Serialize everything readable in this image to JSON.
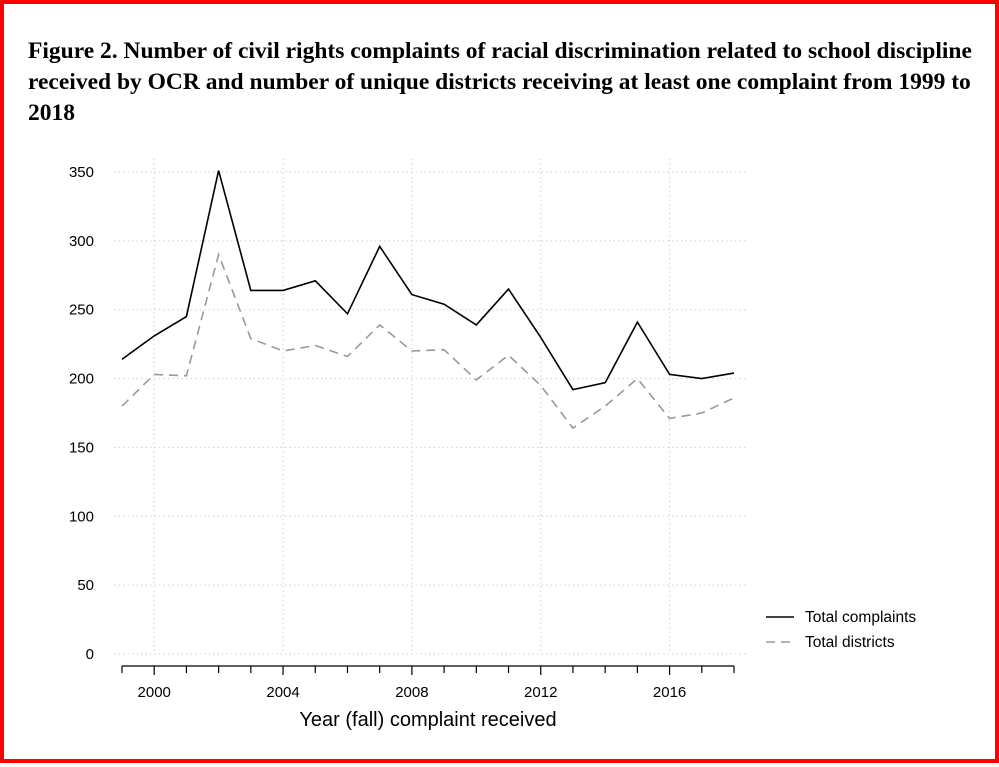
{
  "title": "Figure 2. Number of civil rights complaints of racial discrimination related to school discipline received by OCR and number of unique districts receiving at least one complaint from 1999 to 2018",
  "colors": {
    "border": "#ff0000",
    "complaints": "#000000",
    "districts": "#999999",
    "grid": "#cfcfcf"
  },
  "chart_data": {
    "type": "line",
    "title": "Figure 2. Number of civil rights complaints of racial discrimination related to school discipline received by OCR and number of unique districts receiving at least one complaint from 1999 to 2018",
    "xlabel": "Year (fall) complaint received",
    "ylabel": "",
    "x": [
      1999,
      2000,
      2001,
      2002,
      2003,
      2004,
      2005,
      2006,
      2007,
      2008,
      2009,
      2010,
      2011,
      2012,
      2013,
      2014,
      2015,
      2016,
      2017,
      2018
    ],
    "xlim": [
      1999,
      2018
    ],
    "ylim": [
      0,
      350
    ],
    "x_ticks": [
      2000,
      2004,
      2008,
      2012,
      2016
    ],
    "y_ticks": [
      0,
      50,
      100,
      150,
      200,
      250,
      300,
      350
    ],
    "grid": true,
    "legend_position": "right",
    "series": [
      {
        "name": "Total complaints",
        "style": "solid",
        "color": "#000000",
        "values": [
          214,
          231,
          245,
          351,
          264,
          264,
          271,
          247,
          296,
          261,
          254,
          239,
          265,
          230,
          192,
          197,
          241,
          203,
          200,
          204
        ]
      },
      {
        "name": "Total districts",
        "style": "dashed",
        "color": "#999999",
        "values": [
          180,
          203,
          202,
          290,
          229,
          220,
          224,
          216,
          239,
          220,
          221,
          199,
          217,
          195,
          164,
          180,
          200,
          171,
          175,
          186
        ]
      }
    ]
  }
}
